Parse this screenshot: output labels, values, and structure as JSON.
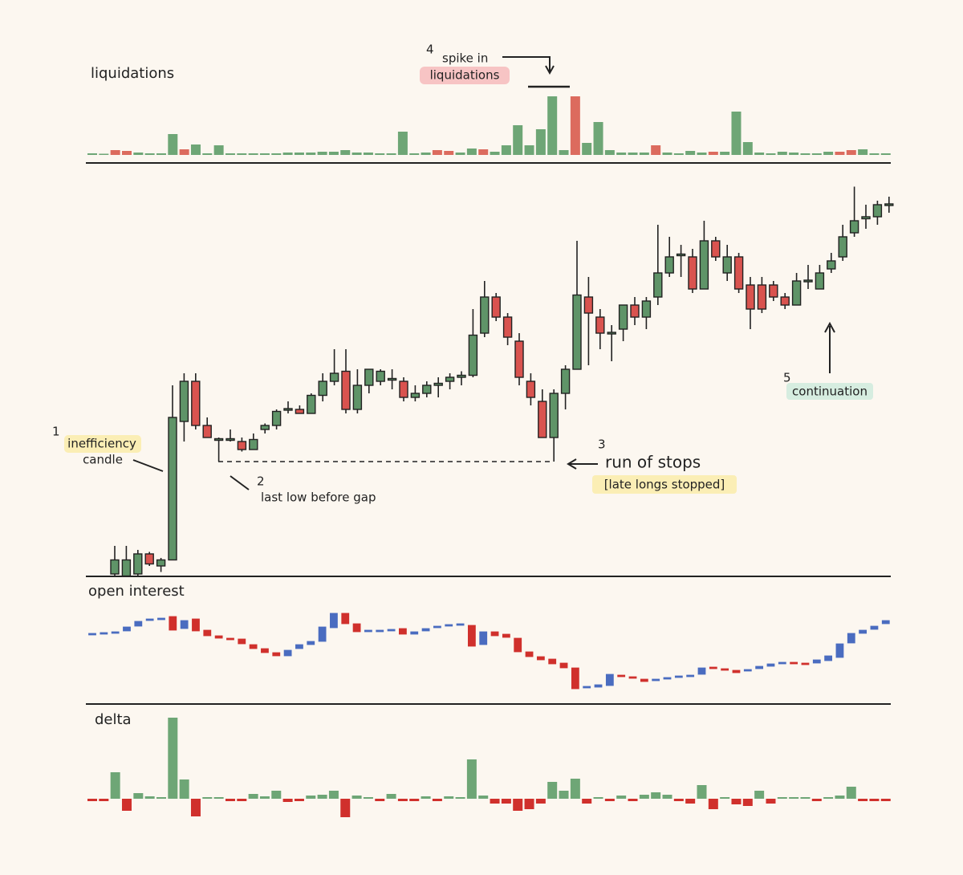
{
  "chart_data": [
    {
      "type": "bar",
      "title": "liquidations",
      "values": [
        2,
        1.5,
        6,
        5,
        3,
        2,
        2,
        26,
        7,
        13,
        2,
        12,
        2,
        2,
        2,
        2,
        2,
        3,
        3,
        3,
        4,
        4,
        6,
        3,
        3,
        2,
        2,
        29,
        2,
        3,
        6,
        5,
        3,
        8,
        7,
        4,
        12,
        37,
        12,
        32,
        73,
        6,
        73,
        15,
        41,
        6,
        3,
        3,
        3,
        12,
        3,
        2,
        5,
        3,
        4,
        4,
        54,
        16,
        3,
        2,
        4,
        3,
        2,
        2,
        4,
        4,
        6,
        7,
        2,
        2
      ],
      "colors": [
        "#6ea676",
        "#6ea676",
        "#dc6b5e",
        "#dc6b5e",
        "#6ea676",
        "#6ea676",
        "#6ea676",
        "#6ea676",
        "#dc6b5e",
        "#6ea676",
        "#6ea676",
        "#6ea676",
        "#6ea676",
        "#6ea676",
        "#6ea676",
        "#6ea676",
        "#6ea676",
        "#6ea676",
        "#6ea676",
        "#6ea676",
        "#6ea676",
        "#6ea676",
        "#6ea676",
        "#6ea676",
        "#6ea676",
        "#6ea676",
        "#6ea676",
        "#6ea676",
        "#6ea676",
        "#6ea676",
        "#dc6b5e",
        "#dc6b5e",
        "#6ea676",
        "#6ea676",
        "#dc6b5e",
        "#6ea676",
        "#6ea676",
        "#6ea676",
        "#6ea676",
        "#6ea676",
        "#6ea676",
        "#6ea676",
        "#dc6b5e",
        "#6ea676",
        "#6ea676",
        "#6ea676",
        "#6ea676",
        "#6ea676",
        "#6ea676",
        "#dc6b5e",
        "#6ea676",
        "#6ea676",
        "#6ea676",
        "#6ea676",
        "#dc6b5e",
        "#6ea676",
        "#6ea676",
        "#6ea676",
        "#6ea676",
        "#6ea676",
        "#6ea676",
        "#6ea676",
        "#6ea676",
        "#6ea676",
        "#6ea676",
        "#dc6b5e",
        "#dc6b5e",
        "#6ea676",
        "#6ea676",
        "#6ea676"
      ]
    },
    {
      "type": "candlestick",
      "up_color": "#5f9468",
      "down_color": "#d9534f",
      "open": [
        1,
        0.5,
        1,
        6,
        3,
        4.5,
        39,
        49,
        38,
        34.5,
        34.5,
        34,
        32,
        37,
        38,
        42,
        42,
        41,
        45.5,
        49,
        51.5,
        42,
        48,
        49,
        49.5,
        49,
        45,
        46,
        48,
        49,
        50,
        50.5,
        61,
        70,
        65,
        59,
        49,
        44,
        35,
        46,
        52,
        70,
        65,
        61,
        62,
        68,
        65,
        70,
        76,
        80.5,
        80,
        72,
        84,
        76,
        80,
        73,
        73,
        73,
        70,
        68,
        74,
        72,
        77,
        80,
        86,
        89.5,
        90,
        93
      ],
      "high": [
        8,
        8,
        7,
        6.5,
        5,
        48,
        51,
        51,
        40,
        35,
        37,
        35,
        36,
        38.5,
        42,
        44,
        43,
        46,
        51,
        57,
        57,
        52,
        52,
        52,
        52,
        50,
        48,
        49,
        50,
        51,
        51.5,
        67,
        74,
        71,
        66,
        61,
        51,
        47,
        47,
        53,
        84,
        75,
        67,
        63,
        68,
        70,
        70,
        88,
        85,
        83,
        82,
        89,
        85,
        83,
        81,
        75,
        75,
        74,
        71,
        76,
        78,
        78,
        81,
        88,
        97.5,
        93,
        94,
        95
      ],
      "low": [
        0.5,
        0.5,
        0.5,
        3,
        1.5,
        4.5,
        34,
        37,
        35,
        29,
        34,
        31.5,
        32,
        36,
        37,
        41,
        41,
        41,
        44,
        48,
        41,
        41,
        46,
        48,
        47,
        44,
        44,
        45,
        45,
        47,
        48,
        50,
        60,
        64,
        58,
        48,
        43,
        35,
        29,
        42,
        52,
        53,
        57,
        54,
        59,
        63,
        62,
        68,
        75,
        75,
        71,
        72,
        79,
        74,
        71,
        62,
        66,
        69,
        67,
        68,
        72,
        72,
        76,
        79,
        85,
        87,
        88,
        91
      ],
      "close": [
        4.5,
        4.5,
        6,
        3.5,
        4.5,
        40,
        49,
        38,
        35,
        34.5,
        34.5,
        32,
        34.5,
        38,
        41.5,
        42,
        41,
        45.5,
        49,
        51,
        42,
        48,
        52,
        51.5,
        49.5,
        45,
        46,
        48,
        48.5,
        50,
        50.5,
        60.5,
        70,
        65,
        60,
        50,
        45,
        35,
        46,
        52,
        70.5,
        66,
        61,
        61,
        68,
        65,
        69,
        76,
        80,
        80.5,
        72,
        84,
        80,
        80,
        72,
        67,
        67,
        70,
        68,
        74,
        74,
        76,
        79,
        85,
        89,
        90,
        93,
        93
      ]
    },
    {
      "type": "candlestick",
      "title": "open interest",
      "up_color": "#4a6cc0",
      "down_color": "#d0302c",
      "open": [
        89,
        90,
        91,
        94,
        100,
        107,
        108,
        112,
        97,
        109,
        95,
        88,
        85,
        84,
        77,
        72,
        67,
        63,
        72,
        77,
        81,
        98,
        116,
        103,
        93,
        93,
        94,
        97,
        90,
        94,
        98,
        100,
        101,
        101,
        77,
        93,
        90,
        85,
        68,
        62,
        59,
        54,
        48,
        23,
        24,
        26,
        39,
        37,
        34,
        32,
        34,
        36,
        37,
        40,
        48,
        46,
        45,
        44,
        47,
        50,
        53,
        54,
        53,
        54,
        57,
        61,
        79,
        91,
        96,
        103
      ],
      "close": [
        90,
        91,
        93,
        99,
        106,
        109,
        109,
        95,
        107,
        94,
        88,
        85,
        83,
        78,
        72,
        67,
        63,
        70,
        77,
        81,
        99,
        116,
        103,
        93,
        95,
        95,
        96,
        90,
        93,
        97,
        100,
        101,
        102,
        75,
        93,
        88,
        86,
        68,
        62,
        58,
        53,
        48,
        22,
        25,
        27,
        40,
        37,
        35,
        31,
        34,
        36,
        38,
        39,
        48,
        47,
        45,
        42,
        46,
        50,
        53,
        54,
        53,
        52,
        58,
        63,
        78,
        91,
        95,
        100,
        107
      ]
    },
    {
      "type": "bar",
      "title": "delta",
      "up_color": "#6ea676",
      "down_color": "#d0302c",
      "values": [
        -3,
        -3,
        33,
        -15,
        7,
        3,
        2,
        101,
        24,
        -22,
        2,
        2,
        -3,
        -3,
        6,
        3,
        10,
        -4,
        -3,
        4,
        5,
        10,
        -23,
        4,
        2,
        -3,
        6,
        -3,
        -3,
        3,
        -3,
        3,
        2,
        49,
        4,
        -6,
        -6,
        -15,
        -13,
        -6,
        21,
        10,
        25,
        -6,
        2,
        -3,
        4,
        -3,
        5,
        8,
        5,
        -3,
        -6,
        17,
        -13,
        2,
        -7,
        -9,
        10,
        -6,
        2,
        2,
        2,
        -3,
        2,
        4,
        15,
        -3,
        -3,
        -3
      ]
    }
  ],
  "annotations": {
    "n1": "1",
    "inefficiency": "inefficiency",
    "candle": "candle",
    "n2": "2",
    "last_low": "last low before gap",
    "n3": "3",
    "run_of_stops": "run of stops",
    "late_longs": "[late longs stopped]",
    "n4": "4",
    "spike_in": "spike in",
    "liquidations": "liquidations",
    "n5": "5",
    "continuation": "continuation"
  }
}
